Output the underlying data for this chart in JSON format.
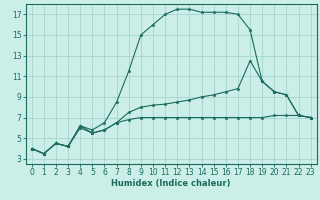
{
  "xlabel": "Humidex (Indice chaleur)",
  "bg_color": "#cceee8",
  "line_color": "#1a6b5a",
  "grid_color": "#aad8d0",
  "xlim": [
    -0.5,
    23.5
  ],
  "ylim": [
    2.5,
    18.0
  ],
  "xticks": [
    0,
    1,
    2,
    3,
    4,
    5,
    6,
    7,
    8,
    9,
    10,
    11,
    12,
    13,
    14,
    15,
    16,
    17,
    18,
    19,
    20,
    21,
    22,
    23
  ],
  "yticks": [
    3,
    5,
    7,
    9,
    11,
    13,
    15,
    17
  ],
  "lines": [
    {
      "x": [
        0,
        1,
        2,
        3,
        4,
        5,
        6,
        7,
        8,
        9,
        10,
        11,
        12,
        13,
        14,
        15,
        16,
        17,
        18,
        19,
        20,
        21,
        22,
        23
      ],
      "y": [
        4.0,
        3.5,
        4.5,
        4.2,
        6.2,
        5.8,
        6.5,
        8.5,
        11.5,
        15.0,
        16.0,
        17.0,
        17.5,
        17.5,
        17.2,
        17.2,
        17.2,
        17.0,
        15.5,
        10.5,
        9.5,
        9.2,
        7.2,
        7.0
      ]
    },
    {
      "x": [
        0,
        1,
        2,
        3,
        4,
        5,
        6,
        7,
        8,
        9,
        10,
        11,
        12,
        13,
        14,
        15,
        16,
        17,
        18,
        19,
        20,
        21,
        22,
        23
      ],
      "y": [
        4.0,
        3.5,
        4.5,
        4.2,
        6.2,
        5.5,
        5.8,
        6.5,
        7.5,
        8.0,
        8.2,
        8.3,
        8.5,
        8.7,
        9.0,
        9.2,
        9.5,
        9.8,
        12.5,
        10.5,
        9.5,
        9.2,
        7.2,
        7.0
      ]
    },
    {
      "x": [
        0,
        1,
        2,
        3,
        4,
        5,
        6,
        7,
        8,
        9,
        10,
        11,
        12,
        13,
        14,
        15,
        16,
        17,
        18,
        19,
        20,
        21,
        22,
        23
      ],
      "y": [
        4.0,
        3.5,
        4.5,
        4.2,
        6.0,
        5.5,
        5.8,
        6.5,
        6.8,
        7.0,
        7.0,
        7.0,
        7.0,
        7.0,
        7.0,
        7.0,
        7.0,
        7.0,
        7.0,
        7.0,
        7.2,
        7.2,
        7.2,
        7.0
      ]
    }
  ]
}
